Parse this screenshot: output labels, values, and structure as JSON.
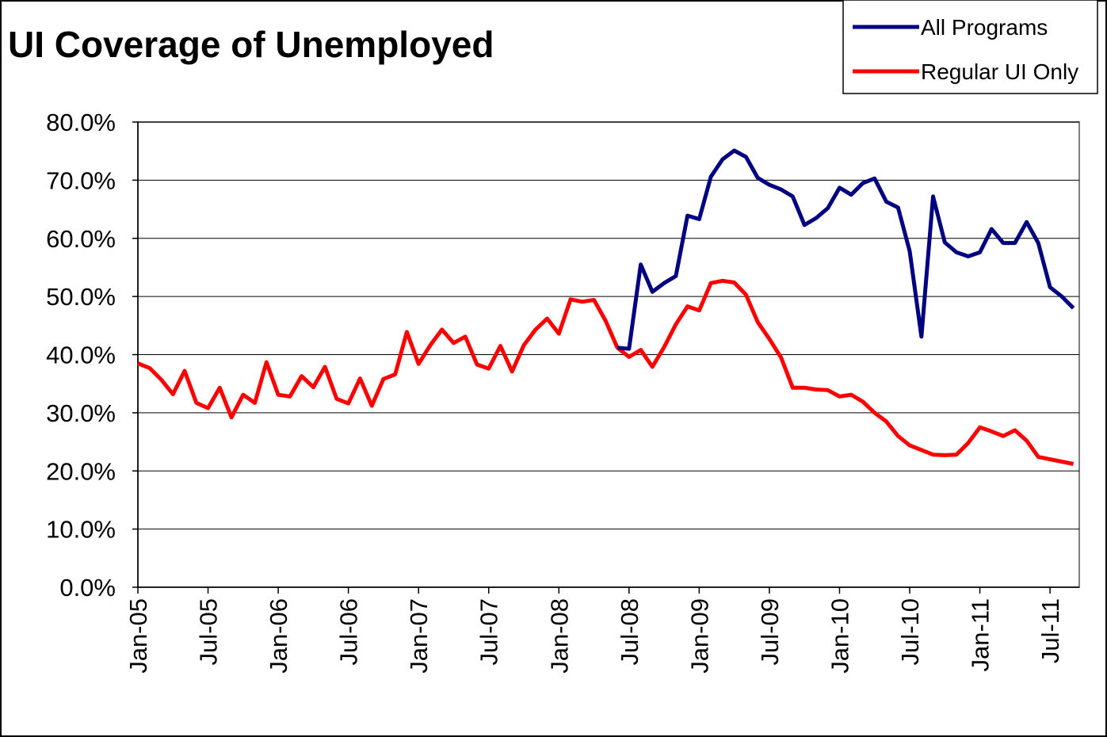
{
  "chart_data": {
    "type": "line",
    "title": "UI Coverage of Unemployed",
    "categories": [
      "Jan-05",
      null,
      null,
      null,
      null,
      null,
      "Jul-05",
      null,
      null,
      null,
      null,
      null,
      "Jan-06",
      null,
      null,
      null,
      null,
      null,
      "Jul-06",
      null,
      null,
      null,
      null,
      null,
      "Jan-07",
      null,
      null,
      null,
      null,
      null,
      "Jul-07",
      null,
      null,
      null,
      null,
      null,
      "Jan-08",
      null,
      null,
      null,
      null,
      null,
      "Jul-08",
      null,
      null,
      null,
      null,
      null,
      "Jan-09",
      null,
      null,
      null,
      null,
      null,
      "Jul-09",
      null,
      null,
      null,
      null,
      null,
      "Jan-10",
      null,
      null,
      null,
      null,
      null,
      "Jul-10",
      null,
      null,
      null,
      null,
      null,
      "Jan-11",
      null,
      null,
      null,
      null,
      null,
      "Jul-11",
      null,
      null
    ],
    "series": [
      {
        "name": "All Programs",
        "color": "#000080",
        "values": [
          null,
          null,
          null,
          null,
          null,
          null,
          null,
          null,
          null,
          null,
          null,
          null,
          null,
          null,
          null,
          null,
          null,
          null,
          null,
          null,
          null,
          null,
          null,
          null,
          null,
          null,
          null,
          null,
          null,
          null,
          null,
          null,
          null,
          null,
          null,
          null,
          null,
          null,
          null,
          null,
          null,
          41.2,
          41.0,
          55.5,
          50.8,
          52.3,
          53.5,
          63.9,
          63.3,
          70.6,
          73.6,
          75.1,
          74.0,
          70.4,
          69.2,
          68.4,
          67.2,
          62.3,
          63.5,
          65.2,
          68.7,
          67.5,
          69.5,
          70.3,
          66.3,
          65.3,
          57.8,
          43.1,
          67.2,
          59.3,
          57.6,
          56.9,
          57.6,
          61.6,
          59.2,
          59.2,
          62.8,
          59.2,
          51.6,
          50.0,
          48.0
        ]
      },
      {
        "name": "Regular UI Only",
        "color": "#ff0000",
        "values": [
          38.5,
          37.7,
          35.7,
          33.2,
          37.2,
          31.7,
          30.8,
          34.3,
          29.2,
          33.1,
          31.7,
          38.7,
          33.1,
          32.8,
          36.3,
          34.4,
          37.9,
          32.4,
          31.6,
          35.9,
          31.2,
          35.8,
          36.6,
          43.9,
          38.4,
          41.6,
          44.3,
          42.0,
          43.1,
          38.3,
          37.6,
          41.5,
          37.1,
          41.6,
          44.3,
          46.2,
          43.6,
          49.5,
          49.1,
          49.4,
          45.8,
          41.2,
          39.6,
          40.8,
          37.9,
          41.3,
          45.2,
          48.3,
          47.6,
          52.3,
          52.7,
          52.4,
          50.3,
          45.6,
          42.7,
          39.5,
          34.3,
          34.3,
          34.0,
          33.9,
          32.8,
          33.1,
          31.9,
          30.0,
          28.5,
          26.0,
          24.4,
          23.6,
          22.8,
          22.7,
          22.8,
          24.8,
          27.5,
          26.8,
          26.0,
          27.0,
          25.2,
          22.4,
          22.0,
          21.6,
          21.2
        ]
      }
    ],
    "ylim": [
      0,
      80
    ],
    "yticks": [
      {
        "value": 0,
        "label": "0.0%"
      },
      {
        "value": 10,
        "label": "10.0%"
      },
      {
        "value": 20,
        "label": "20.0%"
      },
      {
        "value": 30,
        "label": "30.0%"
      },
      {
        "value": 40,
        "label": "40.0%"
      },
      {
        "value": 50,
        "label": "50.0%"
      },
      {
        "value": 60,
        "label": "60.0%"
      },
      {
        "value": 70,
        "label": "70.0%"
      },
      {
        "value": 80,
        "label": "80.0%"
      }
    ],
    "grid": true,
    "legend": "top-right"
  }
}
